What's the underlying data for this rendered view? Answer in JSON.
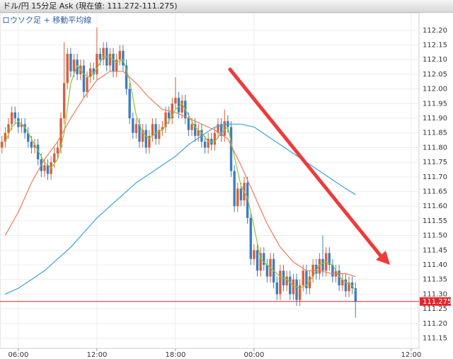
{
  "chart_data": {
    "type": "candlestick",
    "title": "ドル/円 15分足 Ask (現在値: 111.272-111.275)",
    "subtitle": "ロウソク足 + 移動平均線",
    "up_color": "#d9603b",
    "down_color": "#3d7dbf",
    "current_price": 111.275,
    "current_color": "#e0262b",
    "grid": true,
    "xlim": [
      4.6,
      36.6
    ],
    "xticks": [
      {
        "value": 6,
        "label": "06:00"
      },
      {
        "value": 12,
        "label": "12:00"
      },
      {
        "value": 18,
        "label": "18:00"
      },
      {
        "value": 24,
        "label": "00:00"
      },
      {
        "value": 36,
        "label": "12:00"
      }
    ],
    "ylim": [
      111.115,
      112.26
    ],
    "yticks": [
      {
        "value": 112.2,
        "label": "112.20"
      },
      112.15,
      {
        "value": 112.1,
        "label": "112.10"
      },
      112.05,
      {
        "value": 112.0,
        "label": "112.00"
      },
      111.95,
      {
        "value": 111.9,
        "label": "111.90"
      },
      111.85,
      {
        "value": 111.8,
        "label": "111.80"
      },
      111.75,
      {
        "value": 111.7,
        "label": "111.70"
      },
      111.65,
      {
        "value": 111.6,
        "label": "111.60"
      },
      111.55,
      {
        "value": 111.5,
        "label": "111.50"
      },
      111.45,
      {
        "value": 111.4,
        "label": "111.40"
      },
      111.35,
      {
        "value": 111.3,
        "label": "111.30"
      },
      111.25,
      {
        "value": 111.2,
        "label": "111.20"
      },
      111.15
    ],
    "x": [
      4.75,
      5,
      5.25,
      5.5,
      5.75,
      6,
      6.25,
      6.5,
      6.75,
      7,
      7.25,
      7.5,
      7.75,
      8,
      8.25,
      8.5,
      8.75,
      9,
      9.25,
      9.5,
      9.75,
      10,
      10.25,
      10.5,
      10.75,
      11,
      11.25,
      11.5,
      11.75,
      12,
      12.25,
      12.5,
      12.75,
      13,
      13.25,
      13.5,
      13.75,
      14,
      14.25,
      14.5,
      14.75,
      15,
      15.25,
      15.5,
      15.75,
      16,
      16.25,
      16.5,
      16.75,
      17,
      17.25,
      17.5,
      17.75,
      18,
      18.25,
      18.5,
      18.75,
      19,
      19.25,
      19.5,
      19.75,
      20,
      20.25,
      20.5,
      20.75,
      21,
      21.25,
      21.5,
      21.75,
      22,
      22.25,
      22.5,
      22.75,
      23,
      23.25,
      23.5,
      23.75,
      24,
      24.25,
      24.5,
      24.75,
      25,
      25.25,
      25.5,
      25.75,
      26,
      26.25,
      26.5,
      26.75,
      27,
      27.25,
      27.5,
      27.75,
      28,
      28.25,
      28.5,
      28.75,
      29,
      29.25,
      29.5,
      29.75,
      30,
      30.25,
      30.5,
      30.75,
      31,
      31.25,
      31.5,
      31.75
    ],
    "open": [
      111.8,
      111.82,
      111.85,
      111.88,
      111.92,
      111.9,
      111.87,
      111.88,
      111.85,
      111.82,
      111.8,
      111.81,
      111.76,
      111.72,
      111.74,
      111.71,
      111.75,
      111.78,
      111.8,
      111.9,
      112.02,
      112.12,
      112.06,
      112.1,
      112.05,
      112.08,
      111.99,
      112.04,
      112.07,
      112.05,
      112.12,
      112.1,
      112.14,
      112.08,
      112.12,
      112.06,
      112.1,
      112.13,
      112.08,
      112.0,
      111.9,
      111.85,
      111.88,
      111.82,
      111.86,
      111.8,
      111.84,
      111.88,
      111.83,
      111.86,
      111.87,
      111.92,
      111.9,
      111.95,
      111.97,
      111.92,
      111.96,
      111.9,
      111.86,
      111.88,
      111.84,
      111.86,
      111.82,
      111.8,
      111.83,
      111.81,
      111.85,
      111.88,
      111.84,
      111.89,
      111.87,
      111.72,
      111.6,
      111.66,
      111.62,
      111.68,
      111.56,
      111.42,
      111.45,
      111.38,
      111.44,
      111.4,
      111.36,
      111.42,
      111.34,
      111.3,
      111.38,
      111.33,
      111.36,
      111.3,
      111.35,
      111.28,
      111.33,
      111.38,
      111.32,
      111.36,
      111.4,
      111.37,
      111.42,
      111.38,
      111.44,
      111.4,
      111.36,
      111.38,
      111.33,
      111.35,
      111.31,
      111.34,
      111.32
    ],
    "high": [
      111.84,
      111.87,
      111.9,
      111.94,
      111.94,
      111.92,
      111.9,
      111.9,
      111.87,
      111.84,
      111.83,
      111.83,
      111.78,
      111.76,
      111.76,
      111.77,
      111.8,
      111.82,
      111.92,
      112.16,
      112.14,
      112.14,
      112.12,
      112.12,
      112.1,
      112.1,
      112.06,
      112.09,
      112.09,
      112.21,
      112.14,
      112.16,
      112.16,
      112.14,
      112.14,
      112.12,
      112.15,
      112.15,
      112.1,
      112.02,
      111.92,
      111.9,
      111.9,
      111.88,
      111.88,
      111.86,
      111.9,
      111.9,
      111.88,
      111.89,
      111.94,
      111.94,
      111.97,
      112.04,
      111.99,
      111.98,
      111.98,
      111.92,
      111.9,
      111.9,
      111.88,
      111.88,
      111.84,
      111.85,
      111.85,
      111.87,
      111.9,
      111.9,
      111.93,
      111.91,
      111.89,
      111.74,
      111.68,
      111.68,
      111.7,
      111.7,
      111.58,
      111.47,
      111.47,
      111.46,
      111.46,
      111.42,
      111.44,
      111.44,
      111.36,
      111.4,
      111.4,
      111.38,
      111.38,
      111.37,
      111.37,
      111.35,
      111.4,
      111.4,
      111.38,
      111.42,
      111.42,
      111.44,
      111.5,
      111.46,
      111.46,
      111.42,
      111.4,
      111.4,
      111.37,
      111.37,
      111.36,
      111.36,
      111.34
    ],
    "low": [
      111.78,
      111.8,
      111.83,
      111.86,
      111.88,
      111.85,
      111.85,
      111.83,
      111.8,
      111.78,
      111.78,
      111.74,
      111.7,
      111.7,
      111.69,
      111.69,
      111.73,
      111.76,
      111.78,
      111.88,
      112.0,
      112.04,
      112.04,
      112.03,
      112.03,
      111.97,
      111.97,
      112.02,
      112.03,
      112.03,
      112.08,
      112.08,
      112.06,
      112.06,
      112.04,
      112.04,
      112.08,
      112.06,
      111.98,
      111.88,
      111.83,
      111.83,
      111.8,
      111.8,
      111.78,
      111.78,
      111.82,
      111.81,
      111.81,
      111.84,
      111.85,
      111.88,
      111.88,
      111.93,
      111.9,
      111.9,
      111.88,
      111.84,
      111.84,
      111.82,
      111.82,
      111.8,
      111.78,
      111.78,
      111.79,
      111.79,
      111.83,
      111.82,
      111.82,
      111.85,
      111.7,
      111.58,
      111.58,
      111.6,
      111.6,
      111.54,
      111.4,
      111.4,
      111.36,
      111.36,
      111.38,
      111.34,
      111.34,
      111.32,
      111.28,
      111.28,
      111.31,
      111.31,
      111.28,
      111.28,
      111.26,
      111.26,
      111.31,
      111.3,
      111.3,
      111.34,
      111.35,
      111.35,
      111.36,
      111.36,
      111.38,
      111.34,
      111.34,
      111.31,
      111.31,
      111.29,
      111.29,
      111.3,
      111.22
    ],
    "close": [
      111.82,
      111.85,
      111.88,
      111.92,
      111.9,
      111.87,
      111.88,
      111.85,
      111.82,
      111.8,
      111.81,
      111.76,
      111.72,
      111.74,
      111.71,
      111.75,
      111.78,
      111.8,
      111.9,
      112.02,
      112.12,
      112.06,
      112.1,
      112.05,
      112.08,
      111.99,
      112.04,
      112.07,
      112.05,
      112.12,
      112.1,
      112.14,
      112.08,
      112.12,
      112.06,
      112.1,
      112.13,
      112.08,
      112.0,
      111.9,
      111.85,
      111.88,
      111.82,
      111.86,
      111.8,
      111.84,
      111.88,
      111.83,
      111.86,
      111.87,
      111.92,
      111.9,
      111.95,
      111.97,
      111.92,
      111.96,
      111.9,
      111.86,
      111.88,
      111.84,
      111.86,
      111.82,
      111.8,
      111.83,
      111.81,
      111.85,
      111.88,
      111.84,
      111.89,
      111.87,
      111.72,
      111.6,
      111.66,
      111.62,
      111.68,
      111.56,
      111.42,
      111.45,
      111.38,
      111.44,
      111.4,
      111.36,
      111.42,
      111.34,
      111.3,
      111.38,
      111.33,
      111.36,
      111.3,
      111.35,
      111.28,
      111.33,
      111.38,
      111.32,
      111.36,
      111.4,
      111.37,
      111.42,
      111.38,
      111.44,
      111.4,
      111.36,
      111.38,
      111.33,
      111.35,
      111.31,
      111.34,
      111.32,
      111.275
    ],
    "moving_averages": [
      {
        "color": "#8cc63f",
        "x": [
          5,
          5.5,
          6,
          6.5,
          7,
          7.5,
          8,
          8.5,
          9,
          9.5,
          10,
          10.5,
          11,
          11.5,
          12,
          12.5,
          13,
          13.5,
          14,
          14.5,
          15,
          15.5,
          16,
          16.5,
          17,
          17.5,
          18,
          18.5,
          19,
          19.5,
          20,
          20.5,
          21,
          21.5,
          22,
          22.5,
          23,
          23.5,
          24,
          24.5,
          25,
          25.5,
          26,
          26.5,
          27,
          27.5,
          28,
          28.5,
          29,
          29.5,
          30,
          30.5,
          31,
          31.5,
          31.75
        ],
        "values": [
          111.82,
          111.87,
          111.89,
          111.87,
          111.83,
          111.79,
          111.75,
          111.73,
          111.76,
          111.85,
          112.02,
          112.08,
          112.05,
          112.04,
          112.07,
          112.11,
          112.11,
          112.09,
          112.1,
          112.03,
          111.91,
          111.85,
          111.83,
          111.85,
          111.86,
          111.89,
          111.93,
          111.95,
          111.91,
          111.87,
          111.85,
          111.82,
          111.82,
          111.85,
          111.87,
          111.77,
          111.67,
          111.63,
          111.53,
          111.42,
          111.4,
          111.38,
          111.36,
          111.35,
          111.33,
          111.32,
          111.33,
          111.36,
          111.4,
          111.41,
          111.4,
          111.36,
          111.34,
          111.33,
          111.31
        ]
      },
      {
        "color": "#f07a5a",
        "x": [
          5,
          6,
          7,
          8,
          9,
          10,
          11,
          12,
          13,
          14,
          15,
          16,
          17,
          18,
          19,
          20,
          21,
          22,
          23,
          24,
          25,
          26,
          27,
          28,
          29,
          30,
          31,
          31.75
        ],
        "values": [
          111.5,
          111.58,
          111.68,
          111.76,
          111.82,
          111.9,
          111.97,
          112.03,
          112.06,
          112.06,
          112.02,
          111.97,
          111.93,
          111.92,
          111.9,
          111.88,
          111.86,
          111.83,
          111.74,
          111.64,
          111.54,
          111.46,
          111.41,
          111.38,
          111.38,
          111.37,
          111.37,
          111.36
        ]
      },
      {
        "color": "#3ba3dc",
        "x": [
          5,
          6,
          7,
          8,
          9,
          10,
          11,
          12,
          13,
          14,
          15,
          16,
          17,
          18,
          19,
          20,
          21,
          22,
          23,
          24,
          25,
          26,
          27,
          28,
          29,
          30,
          31,
          31.75
        ],
        "values": [
          111.3,
          111.32,
          111.35,
          111.38,
          111.42,
          111.46,
          111.51,
          111.56,
          111.6,
          111.64,
          111.68,
          111.71,
          111.74,
          111.77,
          111.81,
          111.84,
          111.87,
          111.88,
          111.88,
          111.87,
          111.84,
          111.81,
          111.78,
          111.75,
          111.72,
          111.69,
          111.66,
          111.64
        ]
      }
    ]
  }
}
